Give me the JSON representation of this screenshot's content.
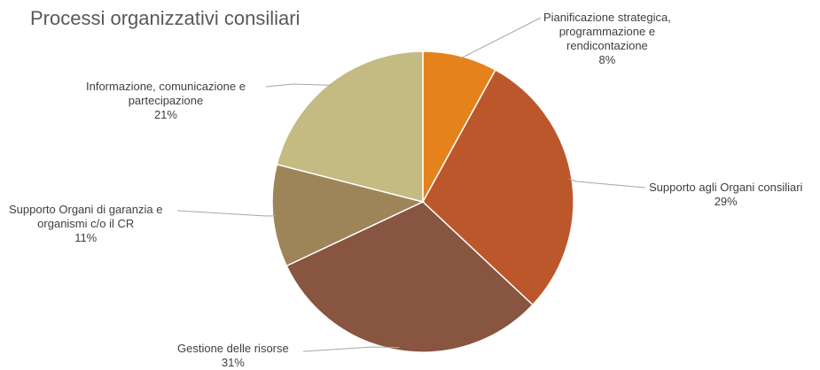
{
  "chart_data": {
    "type": "pie",
    "title": "Processi organizzativi consiliari",
    "start_angle_deg": 0,
    "direction": "clockwise",
    "legend": "none",
    "slices": [
      {
        "label_lines": [
          "Pianificazione strategica,",
          "programmazione e",
          "rendicontazione"
        ],
        "value": 8,
        "value_label": "8%",
        "color": "#e5821c"
      },
      {
        "label_lines": [
          "Supporto agli Organi consiliari"
        ],
        "value": 29,
        "value_label": "29%",
        "color": "#bc572b"
      },
      {
        "label_lines": [
          "Gestione delle risorse"
        ],
        "value": 31,
        "value_label": "31%",
        "color": "#875540"
      },
      {
        "label_lines": [
          "Supporto Organi di garanzia e",
          "organismi c/o il CR"
        ],
        "value": 11,
        "value_label": "11%",
        "color": "#9e8459"
      },
      {
        "label_lines": [
          "Informazione, comunicazione e",
          "partecipazione"
        ],
        "value": 21,
        "value_label": "21%",
        "color": "#c3bb81"
      }
    ]
  }
}
